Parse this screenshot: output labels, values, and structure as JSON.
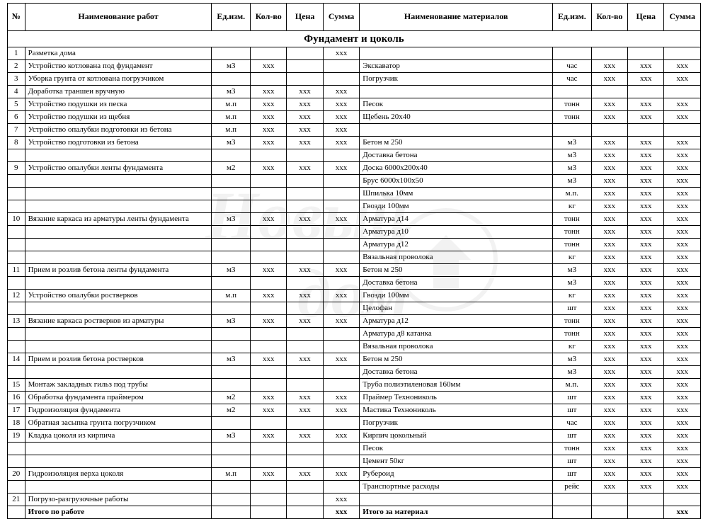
{
  "columns": {
    "num": "№",
    "work": "Наименование работ",
    "unit1": "Ед.изм.",
    "qty1": "Кол-во",
    "price1": "Цена",
    "sum1": "Сумма",
    "material": "Наименование материалов",
    "unit2": "Ед.изм.",
    "qty2": "Кол-во",
    "price2": "Цена",
    "sum2": "Сумма"
  },
  "section_title": "Фундамент и цоколь",
  "totals": {
    "work_label": "Итого по работе",
    "work_sum": "xxx",
    "material_label": "Итого за материал",
    "material_sum": "xxx"
  },
  "placeholder": "xxx",
  "watermark_text": "Новый дом",
  "style": {
    "font_family": "Times New Roman",
    "font_size_body": 11,
    "font_size_header": 12,
    "font_size_section": 15,
    "border_color": "#000000",
    "background_color": "#ffffff",
    "watermark_color": "#9e9e9e",
    "watermark_opacity": 0.12
  },
  "rows": [
    {
      "n": "1",
      "work": "Разметка дома",
      "u1": "",
      "q1": "",
      "p1": "",
      "s1": "xxx",
      "mat": "",
      "u2": "",
      "q2": "",
      "p2": "",
      "s2": ""
    },
    {
      "n": "2",
      "work": "Устройство котлована под фундамент",
      "u1": "м3",
      "q1": "xxx",
      "p1": "",
      "s1": "",
      "mat": "Экскаватор",
      "u2": "час",
      "q2": "xxx",
      "p2": "xxx",
      "s2": "xxx"
    },
    {
      "n": "3",
      "work": "Уборка грунта от котлована погрузчиком",
      "u1": "",
      "q1": "",
      "p1": "",
      "s1": "",
      "mat": "Погрузчик",
      "u2": "час",
      "q2": "xxx",
      "p2": "xxx",
      "s2": "xxx"
    },
    {
      "n": "4",
      "work": "Доработка траншеи вручную",
      "u1": "м3",
      "q1": "xxx",
      "p1": "xxx",
      "s1": "xxx",
      "mat": "",
      "u2": "",
      "q2": "",
      "p2": "",
      "s2": ""
    },
    {
      "n": "5",
      "work": "Устройство подушки из песка",
      "u1": "м.п",
      "q1": "xxx",
      "p1": "xxx",
      "s1": "xxx",
      "mat": "Песок",
      "u2": "тонн",
      "q2": "xxx",
      "p2": "xxx",
      "s2": "xxx"
    },
    {
      "n": "6",
      "work": "Устройство подушки из щебня",
      "u1": "м.п",
      "q1": "xxx",
      "p1": "xxx",
      "s1": "xxx",
      "mat": "Щебень 20х40",
      "u2": "тонн",
      "q2": "xxx",
      "p2": "xxx",
      "s2": "xxx"
    },
    {
      "n": "7",
      "work": "Устройство опалубки подготовки из бетона",
      "u1": "м.п",
      "q1": "xxx",
      "p1": "xxx",
      "s1": "xxx",
      "mat": "",
      "u2": "",
      "q2": "",
      "p2": "",
      "s2": ""
    },
    {
      "n": "8",
      "work": "Устройство подготовки из бетона",
      "u1": "м3",
      "q1": "xxx",
      "p1": "xxx",
      "s1": "xxx",
      "mat": "Бетон м 250",
      "u2": "м3",
      "q2": "xxx",
      "p2": "xxx",
      "s2": "xxx"
    },
    {
      "n": "",
      "work": "",
      "u1": "",
      "q1": "",
      "p1": "",
      "s1": "",
      "mat": "Доставка бетона",
      "u2": "м3",
      "q2": "xxx",
      "p2": "xxx",
      "s2": "xxx"
    },
    {
      "n": "9",
      "work": "Устройство опалубки ленты фундамента",
      "u1": "м2",
      "q1": "xxx",
      "p1": "xxx",
      "s1": "xxx",
      "mat": "Доска 6000х200х40",
      "u2": "м3",
      "q2": "xxx",
      "p2": "xxx",
      "s2": "xxx"
    },
    {
      "n": "",
      "work": "",
      "u1": "",
      "q1": "",
      "p1": "",
      "s1": "",
      "mat": "Брус 6000х100х50",
      "u2": "м3",
      "q2": "xxx",
      "p2": "xxx",
      "s2": "xxx"
    },
    {
      "n": "",
      "work": "",
      "u1": "",
      "q1": "",
      "p1": "",
      "s1": "",
      "mat": "Шпилька 10мм",
      "u2": "м.п.",
      "q2": "xxx",
      "p2": "xxx",
      "s2": "xxx"
    },
    {
      "n": "",
      "work": "",
      "u1": "",
      "q1": "",
      "p1": "",
      "s1": "",
      "mat": "Гвозди 100мм",
      "u2": "кг",
      "q2": "xxx",
      "p2": "xxx",
      "s2": "xxx"
    },
    {
      "n": "10",
      "work": "Вязание каркаса из арматуры ленты фундамента",
      "u1": "м3",
      "q1": "xxx",
      "p1": "xxx",
      "s1": "xxx",
      "mat": "Арматура д14",
      "u2": "тонн",
      "q2": "xxx",
      "p2": "xxx",
      "s2": "xxx"
    },
    {
      "n": "",
      "work": "",
      "u1": "",
      "q1": "",
      "p1": "",
      "s1": "",
      "mat": "Арматура д10",
      "u2": "тонн",
      "q2": "xxx",
      "p2": "xxx",
      "s2": "xxx"
    },
    {
      "n": "",
      "work": "",
      "u1": "",
      "q1": "",
      "p1": "",
      "s1": "",
      "mat": "Арматура д12",
      "u2": "тонн",
      "q2": "xxx",
      "p2": "xxx",
      "s2": "xxx"
    },
    {
      "n": "",
      "work": "",
      "u1": "",
      "q1": "",
      "p1": "",
      "s1": "",
      "mat": "Вязальная проволока",
      "u2": "кг",
      "q2": "xxx",
      "p2": "xxx",
      "s2": "xxx"
    },
    {
      "n": "11",
      "work": "Прием и розлив бетона ленты фундамента",
      "u1": "м3",
      "q1": "xxx",
      "p1": "xxx",
      "s1": "xxx",
      "mat": "Бетон м 250",
      "u2": "м3",
      "q2": "xxx",
      "p2": "xxx",
      "s2": "xxx"
    },
    {
      "n": "",
      "work": "",
      "u1": "",
      "q1": "",
      "p1": "",
      "s1": "",
      "mat": "Доставка бетона",
      "u2": "м3",
      "q2": "xxx",
      "p2": "xxx",
      "s2": "xxx"
    },
    {
      "n": "12",
      "work": "Устройство опалубки ростверков",
      "u1": "м.п",
      "q1": "xxx",
      "p1": "xxx",
      "s1": "xxx",
      "mat": "Гвозди 100мм",
      "u2": "кг",
      "q2": "xxx",
      "p2": "xxx",
      "s2": "xxx"
    },
    {
      "n": "",
      "work": "",
      "u1": "",
      "q1": "",
      "p1": "",
      "s1": "",
      "mat": "Целофан",
      "u2": "шт",
      "q2": "xxx",
      "p2": "xxx",
      "s2": "xxx"
    },
    {
      "n": "13",
      "work": "Вязание каркаса ростверков из арматуры",
      "u1": "м3",
      "q1": "xxx",
      "p1": "xxx",
      "s1": "xxx",
      "mat": "Арматура д12",
      "u2": "тонн",
      "q2": "xxx",
      "p2": "xxx",
      "s2": "xxx"
    },
    {
      "n": "",
      "work": "",
      "u1": "",
      "q1": "",
      "p1": "",
      "s1": "",
      "mat": "Арматура д8 катанка",
      "u2": "тонн",
      "q2": "xxx",
      "p2": "xxx",
      "s2": "xxx"
    },
    {
      "n": "",
      "work": "",
      "u1": "",
      "q1": "",
      "p1": "",
      "s1": "",
      "mat": "Вязальная проволока",
      "u2": "кг",
      "q2": "xxx",
      "p2": "xxx",
      "s2": "xxx"
    },
    {
      "n": "14",
      "work": "Прием и розлив бетона ростверков",
      "u1": "м3",
      "q1": "xxx",
      "p1": "xxx",
      "s1": "xxx",
      "mat": "Бетон м 250",
      "u2": "м3",
      "q2": "xxx",
      "p2": "xxx",
      "s2": "xxx"
    },
    {
      "n": "",
      "work": "",
      "u1": "",
      "q1": "",
      "p1": "",
      "s1": "",
      "mat": "Доставка бетона",
      "u2": "м3",
      "q2": "xxx",
      "p2": "xxx",
      "s2": "xxx"
    },
    {
      "n": "15",
      "work": "Монтаж закладных гильз под трубы",
      "u1": "",
      "q1": "",
      "p1": "",
      "s1": "",
      "mat": "Труба полиэтиленовая 160мм",
      "u2": "м.п.",
      "q2": "xxx",
      "p2": "xxx",
      "s2": "xxx"
    },
    {
      "n": "16",
      "work": "Обработка фундамента праймером",
      "u1": "м2",
      "q1": "xxx",
      "p1": "xxx",
      "s1": "xxx",
      "mat": "Праймер Технониколь",
      "u2": "шт",
      "q2": "xxx",
      "p2": "xxx",
      "s2": "xxx"
    },
    {
      "n": "17",
      "work": "Гидроизоляция фундамента",
      "u1": "м2",
      "q1": "xxx",
      "p1": "xxx",
      "s1": "xxx",
      "mat": "Мастика Технониколь",
      "u2": "шт",
      "q2": "xxx",
      "p2": "xxx",
      "s2": "xxx"
    },
    {
      "n": "18",
      "work": "Обратная засыпка грунта погрузчиком",
      "u1": "",
      "q1": "",
      "p1": "",
      "s1": "",
      "mat": "Погрузчик",
      "u2": "час",
      "q2": "xxx",
      "p2": "xxx",
      "s2": "xxx"
    },
    {
      "n": "19",
      "work": "Кладка цоколя из кирпича",
      "u1": "м3",
      "q1": "xxx",
      "p1": "xxx",
      "s1": "xxx",
      "mat": "Кирпич цокольный",
      "u2": "шт",
      "q2": "xxx",
      "p2": "xxx",
      "s2": "xxx"
    },
    {
      "n": "",
      "work": "",
      "u1": "",
      "q1": "",
      "p1": "",
      "s1": "",
      "mat": "Песок",
      "u2": "тонн",
      "q2": "xxx",
      "p2": "xxx",
      "s2": "xxx"
    },
    {
      "n": "",
      "work": "",
      "u1": "",
      "q1": "",
      "p1": "",
      "s1": "",
      "mat": "Цемент 50кг",
      "u2": "шт",
      "q2": "xxx",
      "p2": "xxx",
      "s2": "xxx"
    },
    {
      "n": "20",
      "work": "Гидроизоляция верха цоколя",
      "u1": "м.п",
      "q1": "xxx",
      "p1": "xxx",
      "s1": "xxx",
      "mat": "Рубероид",
      "u2": "шт",
      "q2": "xxx",
      "p2": "xxx",
      "s2": "xxx"
    },
    {
      "n": "",
      "work": "",
      "u1": "",
      "q1": "",
      "p1": "",
      "s1": "",
      "mat": "Транспортные расходы",
      "u2": "рейс",
      "q2": "xxx",
      "p2": "xxx",
      "s2": "xxx"
    },
    {
      "n": "21",
      "work": "Погрузо-разгрузочные работы",
      "u1": "",
      "q1": "",
      "p1": "",
      "s1": "xxx",
      "mat": "",
      "u2": "",
      "q2": "",
      "p2": "",
      "s2": ""
    }
  ]
}
